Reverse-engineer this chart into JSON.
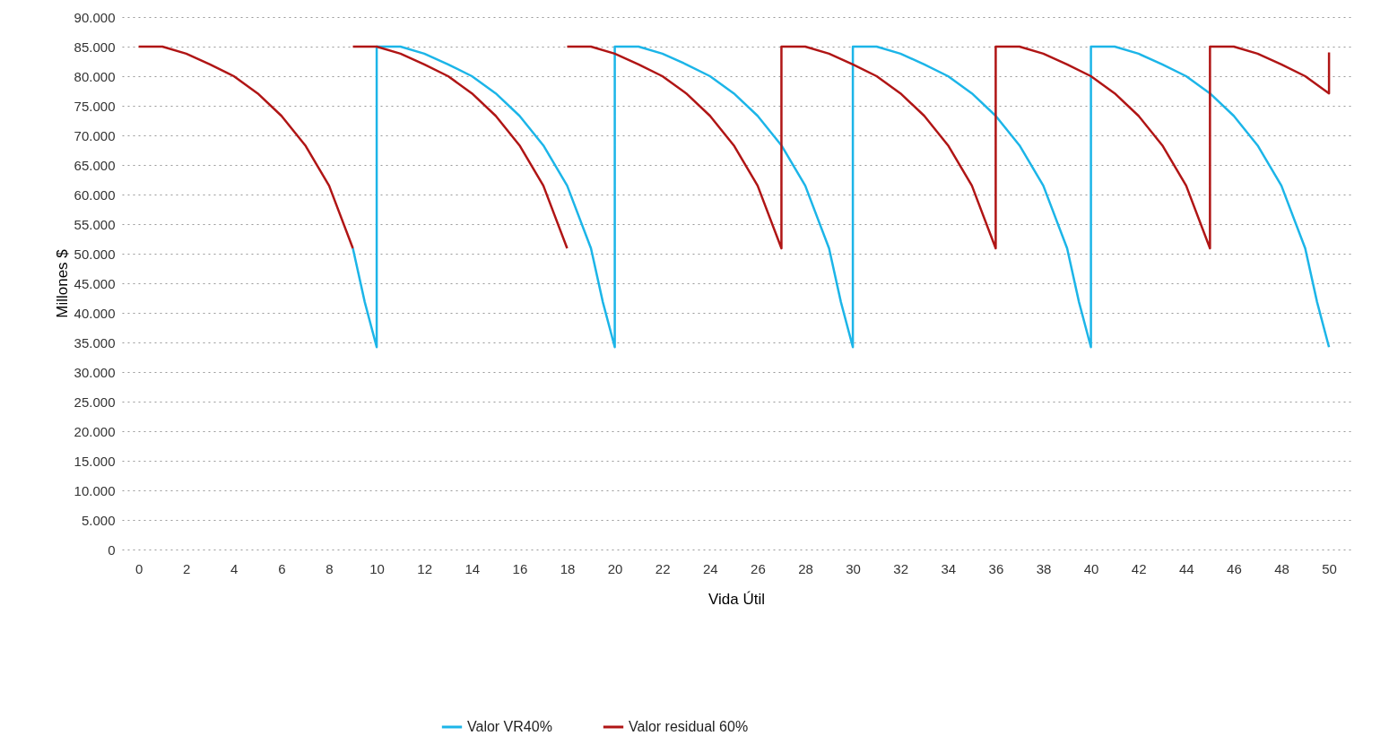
{
  "chart_data": {
    "type": "line",
    "xlabel": "Vida Útil",
    "ylabel": "Millones $",
    "xlim": [
      -0.7,
      50.9
    ],
    "xticks": [
      0,
      2,
      4,
      6,
      8,
      10,
      12,
      14,
      16,
      18,
      20,
      22,
      24,
      26,
      28,
      30,
      32,
      34,
      36,
      38,
      40,
      42,
      44,
      46,
      48,
      50
    ],
    "ylim": [
      0,
      90000
    ],
    "yticks": [
      {
        "value": 0,
        "label": "0"
      },
      {
        "value": 5000,
        "label": "5.000"
      },
      {
        "value": 10000,
        "label": "10.000"
      },
      {
        "value": 15000,
        "label": "15.000"
      },
      {
        "value": 20000,
        "label": "20.000"
      },
      {
        "value": 25000,
        "label": "25.000"
      },
      {
        "value": 30000,
        "label": "30.000"
      },
      {
        "value": 35000,
        "label": "35.000"
      },
      {
        "value": 40000,
        "label": "40.000"
      },
      {
        "value": 45000,
        "label": "45.000"
      },
      {
        "value": 50000,
        "label": "50.000"
      },
      {
        "value": 55000,
        "label": "55.000"
      },
      {
        "value": 60000,
        "label": "60.000"
      },
      {
        "value": 65000,
        "label": "65.000"
      },
      {
        "value": 70000,
        "label": "70.000"
      },
      {
        "value": 75000,
        "label": "75.000"
      },
      {
        "value": 80000,
        "label": "80.000"
      },
      {
        "value": 85000,
        "label": "85.000"
      },
      {
        "value": 90000,
        "label": "90.000"
      }
    ],
    "grid": "y",
    "legend": "bottom",
    "marker": "none",
    "line_style": "solid",
    "series": [
      {
        "name": "Valor VR40%",
        "color": "#1cb5e8",
        "x": [
          9,
          9.5,
          10,
          10,
          11,
          12,
          13,
          14,
          15,
          16,
          17,
          18,
          19,
          19.5,
          20,
          20,
          21,
          22,
          23,
          24,
          25,
          26,
          27,
          28,
          29,
          29.5,
          30,
          30,
          31,
          32,
          33,
          34,
          35,
          36,
          37,
          38,
          39,
          39.5,
          40,
          40,
          41,
          42,
          43,
          44,
          45,
          46,
          47,
          48,
          49,
          49.5,
          50
        ],
        "values": [
          50900,
          41800,
          34200,
          85000,
          85000,
          83800,
          82000,
          80000,
          77100,
          73300,
          68300,
          61500,
          50900,
          41800,
          34200,
          85000,
          85000,
          83800,
          82000,
          80000,
          77100,
          73300,
          68300,
          61500,
          50900,
          41800,
          34200,
          85000,
          85000,
          83800,
          82000,
          80000,
          77100,
          73300,
          68300,
          61500,
          50900,
          41800,
          34200,
          85000,
          85000,
          83800,
          82000,
          80000,
          77100,
          73300,
          68300,
          61500,
          50900,
          41800,
          34200
        ]
      },
      {
        "name": "Valor residual 60%",
        "color": "#b01515",
        "x": [
          0,
          1,
          2,
          3,
          4,
          5,
          6,
          7,
          8,
          9,
          null,
          9,
          10,
          11,
          12,
          13,
          14,
          15,
          16,
          17,
          18,
          null,
          18,
          19,
          20,
          21,
          22,
          23,
          24,
          25,
          26,
          27,
          27,
          28,
          29,
          30,
          31,
          32,
          33,
          34,
          35,
          36,
          36,
          37,
          38,
          39,
          40,
          41,
          42,
          43,
          44,
          45,
          45,
          46,
          47,
          48,
          49,
          50,
          50
        ],
        "values": [
          85000,
          85000,
          83800,
          82000,
          80000,
          77100,
          73300,
          68300,
          61500,
          50900,
          null,
          85000,
          85000,
          83800,
          82000,
          80000,
          77100,
          73300,
          68300,
          61500,
          50900,
          null,
          85000,
          85000,
          83800,
          82000,
          80000,
          77100,
          73300,
          68300,
          61500,
          50900,
          85000,
          85000,
          83800,
          82000,
          80000,
          77100,
          73300,
          68300,
          61500,
          50900,
          85000,
          85000,
          83800,
          82000,
          80000,
          77100,
          73300,
          68300,
          61500,
          50900,
          85000,
          85000,
          83800,
          82000,
          80000,
          77100,
          84000
        ]
      }
    ]
  }
}
